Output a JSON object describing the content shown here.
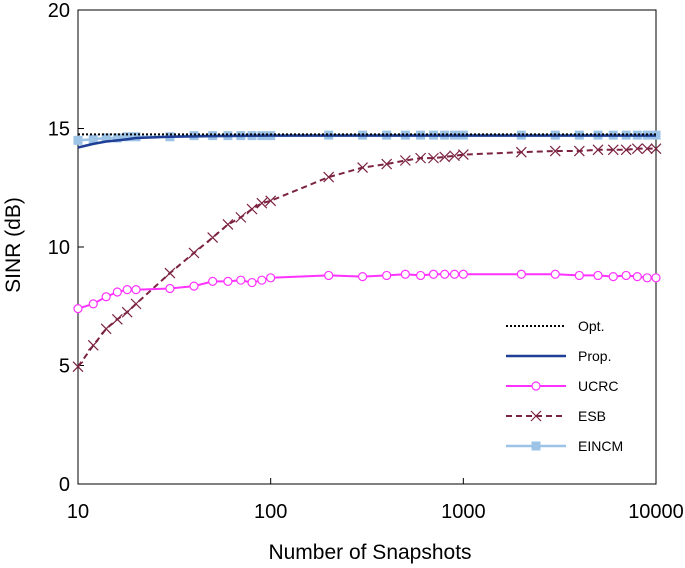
{
  "chart_data": {
    "type": "line",
    "title": "",
    "xlabel": "Number of Snapshots",
    "ylabel": "SINR (dB)",
    "xscale": "log",
    "xlim": [
      10,
      10000
    ],
    "ylim": [
      0,
      20
    ],
    "xticks": [
      10,
      100,
      1000,
      10000
    ],
    "xtick_labels": [
      "10",
      "100",
      "1000",
      "10000"
    ],
    "yticks": [
      0,
      5,
      10,
      15,
      20
    ],
    "ytick_labels": [
      "0",
      "5",
      "10",
      "15",
      "20"
    ],
    "grid": false,
    "legend_position": "bottom-right",
    "series": [
      {
        "name": "Opt.",
        "style": "dotted",
        "marker": "none",
        "color": "#000000",
        "x": [
          10,
          20,
          50,
          100,
          200,
          500,
          1000,
          2000,
          5000,
          10000
        ],
        "y": [
          14.75,
          14.75,
          14.75,
          14.75,
          14.75,
          14.75,
          14.75,
          14.75,
          14.75,
          14.75
        ]
      },
      {
        "name": "Prop.",
        "style": "solid",
        "marker": "none",
        "color": "#1f3f96",
        "x": [
          10,
          12,
          14,
          16,
          18,
          20,
          30,
          50,
          100,
          200,
          500,
          1000,
          2000,
          5000,
          10000
        ],
        "y": [
          14.2,
          14.35,
          14.45,
          14.5,
          14.55,
          14.6,
          14.65,
          14.68,
          14.7,
          14.7,
          14.7,
          14.7,
          14.7,
          14.7,
          14.7
        ]
      },
      {
        "name": "UCRC",
        "style": "solid",
        "marker": "circle",
        "color": "#ff33ff",
        "x": [
          10,
          12,
          14,
          16,
          18,
          20,
          30,
          40,
          50,
          60,
          70,
          80,
          90,
          100,
          200,
          300,
          400,
          500,
          600,
          700,
          800,
          900,
          1000,
          2000,
          3000,
          4000,
          5000,
          6000,
          7000,
          8000,
          9000,
          10000
        ],
        "y": [
          7.4,
          7.6,
          7.9,
          8.1,
          8.2,
          8.2,
          8.25,
          8.35,
          8.55,
          8.55,
          8.6,
          8.5,
          8.6,
          8.7,
          8.8,
          8.75,
          8.8,
          8.85,
          8.8,
          8.85,
          8.85,
          8.85,
          8.85,
          8.85,
          8.85,
          8.8,
          8.8,
          8.75,
          8.8,
          8.75,
          8.7,
          8.7
        ]
      },
      {
        "name": "ESB",
        "style": "dashed",
        "marker": "x",
        "color": "#7b2340",
        "x": [
          10,
          12,
          14,
          16,
          18,
          20,
          30,
          40,
          50,
          60,
          70,
          80,
          90,
          100,
          200,
          300,
          400,
          500,
          600,
          700,
          800,
          900,
          1000,
          2000,
          3000,
          4000,
          5000,
          6000,
          7000,
          8000,
          9000,
          10000
        ],
        "y": [
          4.95,
          5.85,
          6.55,
          6.95,
          7.25,
          7.6,
          8.9,
          9.75,
          10.4,
          10.95,
          11.25,
          11.6,
          11.85,
          11.95,
          12.95,
          13.35,
          13.5,
          13.65,
          13.75,
          13.75,
          13.8,
          13.85,
          13.9,
          14.0,
          14.05,
          14.05,
          14.1,
          14.1,
          14.1,
          14.15,
          14.15,
          14.15
        ]
      },
      {
        "name": "EINCM",
        "style": "solid",
        "marker": "square",
        "color": "#9dc3e6",
        "x": [
          10,
          12,
          14,
          16,
          18,
          20,
          30,
          40,
          50,
          60,
          70,
          80,
          90,
          100,
          200,
          300,
          400,
          500,
          600,
          700,
          800,
          900,
          1000,
          2000,
          3000,
          4000,
          5000,
          6000,
          7000,
          8000,
          9000,
          10000
        ],
        "y": [
          14.5,
          14.55,
          14.6,
          14.6,
          14.65,
          14.65,
          14.65,
          14.7,
          14.7,
          14.7,
          14.7,
          14.7,
          14.7,
          14.7,
          14.72,
          14.72,
          14.72,
          14.72,
          14.72,
          14.72,
          14.72,
          14.72,
          14.72,
          14.72,
          14.72,
          14.72,
          14.72,
          14.72,
          14.72,
          14.72,
          14.72,
          14.72
        ]
      }
    ]
  }
}
